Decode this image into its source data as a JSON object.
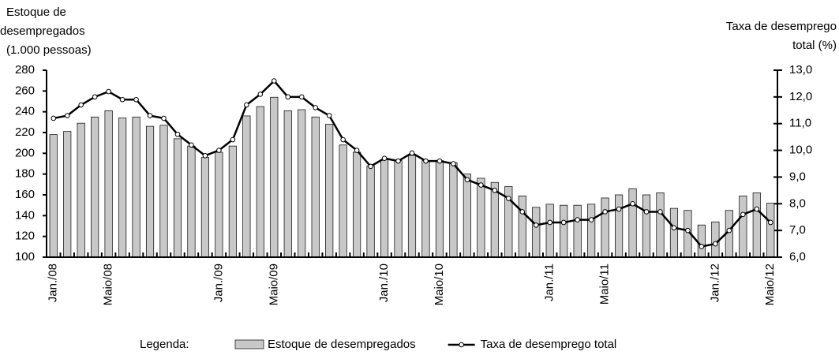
{
  "chart_data": {
    "type": "combo",
    "ylabel": [
      "Estoque de",
      "desempregados",
      "(1.000 pessoas)"
    ],
    "y2label": [
      "Taxa de desemprego",
      "total (%)"
    ],
    "legend_title": "Legenda:",
    "categories": [
      "Jan./08",
      null,
      null,
      null,
      "Maio/08",
      null,
      null,
      null,
      null,
      null,
      null,
      null,
      "Jan./09",
      null,
      null,
      null,
      "Maio/09",
      null,
      null,
      null,
      null,
      null,
      null,
      null,
      "Jan./10",
      null,
      null,
      null,
      "Maio/10",
      null,
      null,
      null,
      null,
      null,
      null,
      null,
      "Jan./11",
      null,
      null,
      null,
      "Maio/11",
      null,
      null,
      null,
      null,
      null,
      null,
      null,
      "Jan./12",
      null,
      null,
      null,
      "Maio/12"
    ],
    "series": [
      {
        "name": "Estoque de desempregados",
        "type": "bar",
        "axis": "y",
        "color": "#c8c8c8",
        "values": [
          218,
          221,
          229,
          235,
          241,
          234,
          235,
          226,
          227,
          214,
          207,
          196,
          201,
          207,
          236,
          245,
          254,
          241,
          242,
          235,
          228,
          208,
          201,
          188,
          194,
          193,
          198,
          193,
          193,
          191,
          180,
          176,
          172,
          168,
          159,
          148,
          151,
          150,
          150,
          151,
          157,
          160,
          166,
          160,
          162,
          147,
          145,
          131,
          134,
          145,
          159,
          162,
          152
        ]
      },
      {
        "name": "Taxa de desemprego total",
        "type": "line",
        "axis": "y2",
        "color": "#000000",
        "values": [
          11.2,
          11.3,
          11.7,
          12.0,
          12.2,
          11.9,
          11.9,
          11.3,
          11.2,
          10.6,
          10.2,
          9.8,
          10.0,
          10.4,
          11.7,
          12.1,
          12.6,
          12.0,
          12.0,
          11.6,
          11.3,
          10.4,
          10.0,
          9.4,
          9.7,
          9.6,
          9.9,
          9.6,
          9.6,
          9.5,
          8.9,
          8.7,
          8.5,
          8.2,
          7.7,
          7.2,
          7.3,
          7.3,
          7.4,
          7.4,
          7.7,
          7.8,
          8.0,
          7.7,
          7.7,
          7.1,
          7.0,
          6.4,
          6.5,
          7.0,
          7.6,
          7.8,
          7.3
        ]
      }
    ],
    "ylim": [
      100,
      280
    ],
    "yticks": [
      100,
      120,
      140,
      160,
      180,
      200,
      220,
      240,
      260,
      280
    ],
    "y2lim": [
      6,
      13
    ],
    "y2ticks": [
      {
        "value": 6,
        "label": "6,0"
      },
      {
        "value": 7,
        "label": "7,0"
      },
      {
        "value": 8,
        "label": "8,0"
      },
      {
        "value": 9,
        "label": "9,0"
      },
      {
        "value": 10,
        "label": "10,0"
      },
      {
        "value": 11,
        "label": "11,0"
      },
      {
        "value": 12,
        "label": "12,0"
      },
      {
        "value": 13,
        "label": "13,0"
      }
    ]
  }
}
